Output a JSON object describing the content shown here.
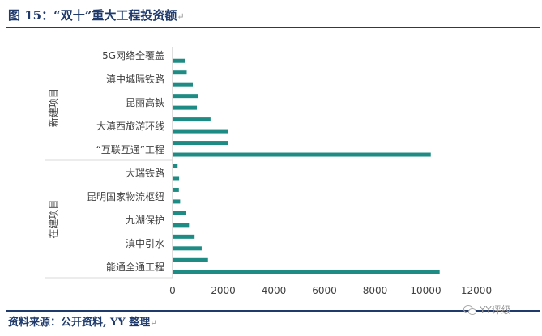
{
  "figure": {
    "title": "图 15：“双十”重大工程投资额",
    "title_mark": "↵",
    "source": "资料来源：公开资料, YY 整理",
    "source_mark": "↵",
    "watermark": "YY评级",
    "watermark_icon": "wechat-icon"
  },
  "chart_data": {
    "type": "bar",
    "orientation": "horizontal",
    "title": "",
    "xlabel": "",
    "ylabel": "",
    "xlim": [
      0,
      12000
    ],
    "x_ticks": [
      "0",
      "2000",
      "4000",
      "6000",
      "8000",
      "10000",
      "12000"
    ],
    "bar_color": "#1e8c84",
    "grid": false,
    "groups": [
      {
        "name": "新建项目",
        "categories": [
          {
            "label": "5G网络全覆盖",
            "value": 480
          },
          {
            "label": "",
            "value": 560
          },
          {
            "label": "滇中城际铁路",
            "value": 800
          },
          {
            "label": "",
            "value": 1000
          },
          {
            "label": "昆丽高铁",
            "value": 960
          },
          {
            "label": "",
            "value": 1500
          },
          {
            "label": "大滇西旅游环线",
            "value": 2200
          },
          {
            "label": "",
            "value": 2200
          },
          {
            "label": "“互联互通”工程",
            "value": 10200
          }
        ]
      },
      {
        "name": "在建项目",
        "categories": [
          {
            "label": "",
            "value": 200
          },
          {
            "label": "大瑞铁路",
            "value": 260
          },
          {
            "label": "",
            "value": 250
          },
          {
            "label": "昆明国家物流枢纽",
            "value": 300
          },
          {
            "label": "",
            "value": 520
          },
          {
            "label": "九湖保护",
            "value": 650
          },
          {
            "label": "",
            "value": 870
          },
          {
            "label": "滇中引水",
            "value": 1150
          },
          {
            "label": "",
            "value": 1400
          },
          {
            "label": "能通全通工程",
            "value": 10550
          }
        ]
      }
    ]
  }
}
